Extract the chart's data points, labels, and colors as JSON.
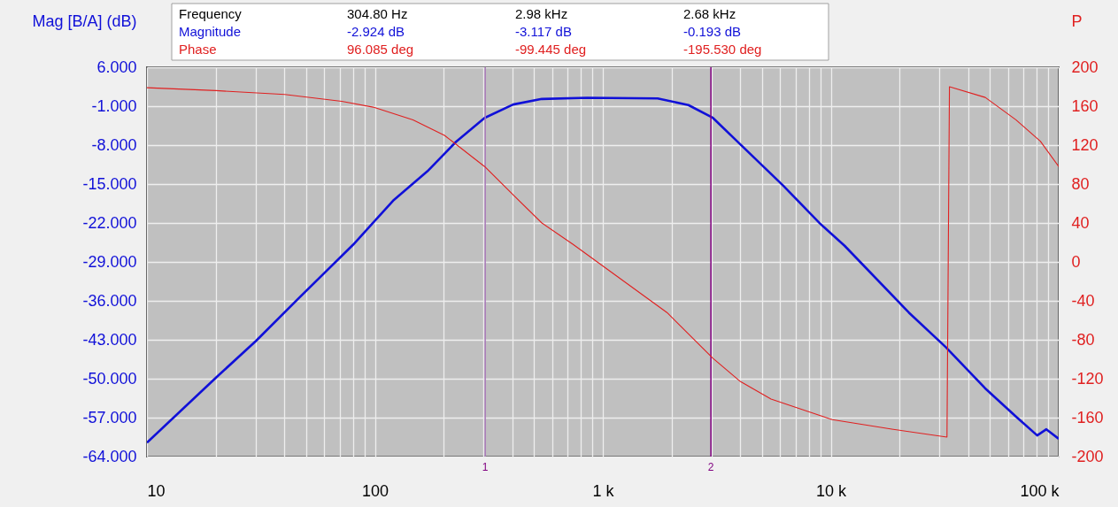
{
  "chart_data": {
    "type": "line",
    "ylabel": "Mag [B/A] (dB)",
    "y2label": "P",
    "log": "x",
    "grid": true,
    "line_style": "solid",
    "xlim": [
      10,
      100000
    ],
    "xticks": [
      10,
      {
        "value": 20,
        "label": null
      },
      {
        "value": 30,
        "label": null
      },
      {
        "value": 40,
        "label": null
      },
      {
        "value": 50,
        "label": null
      },
      {
        "value": 60,
        "label": null
      },
      {
        "value": 70,
        "label": null
      },
      {
        "value": 80,
        "label": null
      },
      {
        "value": 90,
        "label": null
      },
      100,
      {
        "value": 200,
        "label": null
      },
      {
        "value": 300,
        "label": null
      },
      {
        "value": 400,
        "label": null
      },
      {
        "value": 500,
        "label": null
      },
      {
        "value": 600,
        "label": null
      },
      {
        "value": 700,
        "label": null
      },
      {
        "value": 800,
        "label": null
      },
      {
        "value": 900,
        "label": null
      },
      {
        "value": 1000,
        "label": "1 k"
      },
      {
        "value": 2000,
        "label": null
      },
      {
        "value": 3000,
        "label": null
      },
      {
        "value": 4000,
        "label": null
      },
      {
        "value": 5000,
        "label": null
      },
      {
        "value": 6000,
        "label": null
      },
      {
        "value": 7000,
        "label": null
      },
      {
        "value": 8000,
        "label": null
      },
      {
        "value": 9000,
        "label": null
      },
      {
        "value": 10000,
        "label": "10 k"
      },
      {
        "value": 20000,
        "label": null
      },
      {
        "value": 30000,
        "label": null
      },
      {
        "value": 40000,
        "label": null
      },
      {
        "value": 50000,
        "label": null
      },
      {
        "value": 60000,
        "label": null
      },
      {
        "value": 70000,
        "label": null
      },
      {
        "value": 80000,
        "label": null
      },
      {
        "value": 90000,
        "label": null
      },
      {
        "value": 100000,
        "label": "100 k"
      }
    ],
    "ylim": [
      -64,
      6
    ],
    "yticks": [
      {
        "value": 6,
        "label": "6.000"
      },
      {
        "value": -1,
        "label": "-1.000"
      },
      {
        "value": -8,
        "label": "-8.000"
      },
      {
        "value": -15,
        "label": "-15.000"
      },
      {
        "value": -22,
        "label": "-22.000"
      },
      {
        "value": -29,
        "label": "-29.000"
      },
      {
        "value": -36,
        "label": "-36.000"
      },
      {
        "value": -43,
        "label": "-43.000"
      },
      {
        "value": -50,
        "label": "-50.000"
      },
      {
        "value": -57,
        "label": "-57.000"
      },
      {
        "value": -64,
        "label": "-64.000"
      }
    ],
    "y2lim": [
      -200,
      200
    ],
    "y2ticks": [
      200,
      160,
      120,
      80,
      40,
      0,
      -40,
      -80,
      -120,
      -160,
      -200
    ],
    "ref_lines": [
      {
        "axis": "x",
        "value": 304.8,
        "color": "#a878b8"
      },
      {
        "axis": "x",
        "value": 2980,
        "color": "#800080"
      }
    ],
    "annotations": [
      "Frequency",
      "304.80 Hz",
      "2.98 kHz",
      "2.68 kHz",
      "-2.924 dB",
      "-3.117 dB",
      "-0.193 dB",
      "96.085 deg",
      "-99.445 deg",
      "-195.530 deg",
      "1",
      "2"
    ],
    "series": [
      {
        "name": "Magnitude",
        "color": "#1010d8",
        "x": [
          10,
          20.1,
          30.1,
          46.4,
          80.3,
          120.2,
          170,
          227,
          303,
          404,
          540,
          855,
          1740,
          2375,
          3040,
          4020,
          6190,
          8970,
          11500,
          22000,
          31900,
          47500,
          64900,
          80500,
          88300,
          100000
        ],
        "values": [
          -61.5,
          -49.8,
          -43.2,
          -35.5,
          -25.9,
          -18.0,
          -12.7,
          -7.4,
          -3.1,
          -0.7,
          0.3,
          0.5,
          0.4,
          -0.8,
          -3.1,
          -7.9,
          -15.3,
          -22.1,
          -26.1,
          -38.1,
          -44.3,
          -51.7,
          -56.8,
          -60.2,
          -59.1,
          -60.8
        ]
      },
      {
        "name": "Phase",
        "color": "#e02020",
        "axis": "y2",
        "x": [
          10,
          20.1,
          40.2,
          71.5,
          98.3,
          147,
          202,
          303,
          404,
          540,
          741,
          1912,
          3040,
          4020,
          5470,
          10150,
          18800,
          32350,
          33170,
          47640,
          64900,
          83100,
          100000
        ],
        "values": [
          179,
          176,
          172,
          165,
          159,
          146,
          130,
          98,
          69,
          40,
          18,
          -52,
          -99,
          -123,
          -141,
          -162,
          -172,
          -180,
          180,
          169,
          146,
          124,
          98
        ]
      }
    ]
  }
}
